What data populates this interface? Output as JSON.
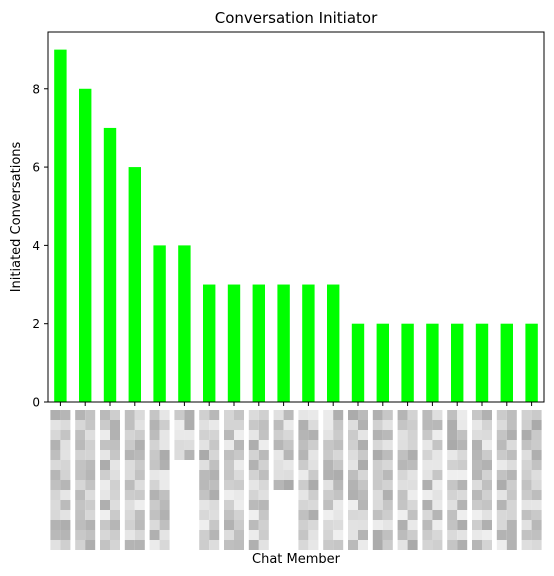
{
  "chart_data": {
    "type": "bar",
    "title": "Conversation Initiator",
    "xlabel": "Chat Member",
    "ylabel": "Initiated Conversations",
    "ylim": [
      0,
      9.45
    ],
    "yticks": [
      0,
      2,
      4,
      6,
      8
    ],
    "grid": false,
    "legend": "none",
    "bar_color": "#00ff00",
    "values": [
      9,
      8,
      7,
      6,
      4,
      4,
      3,
      3,
      3,
      3,
      3,
      3,
      2,
      2,
      2,
      2,
      2,
      2,
      2,
      2
    ],
    "tick_label_note": "x tick labels are pixelated/obscured (grayscale mosaic)"
  }
}
